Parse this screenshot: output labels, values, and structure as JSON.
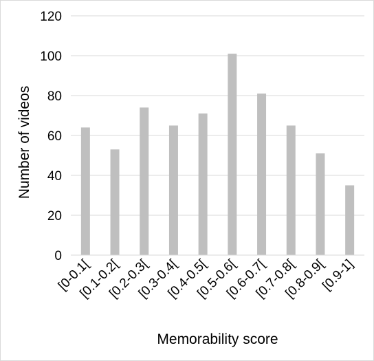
{
  "chart_data": {
    "type": "bar",
    "title": "",
    "xlabel": "Memorability score",
    "ylabel": "Number of videos",
    "categories": [
      "[0-0.1[",
      "[0.1-0.2[",
      "[0.2-0.3[",
      "[0.3-0.4[",
      "[0.4-0.5[",
      "[0.5-0.6[",
      "[0.6-0.7[",
      "[0.7-0.8[",
      "[0.8-0.9[",
      "[0.9-1]"
    ],
    "values": [
      64,
      53,
      74,
      65,
      71,
      101,
      81,
      65,
      51,
      35
    ],
    "ylim": [
      0,
      120
    ],
    "yticks": [
      0,
      20,
      40,
      60,
      80,
      100,
      120
    ],
    "grid": true,
    "bar_color": "#bfbfbf",
    "grid_color": "#d9d9d9"
  }
}
